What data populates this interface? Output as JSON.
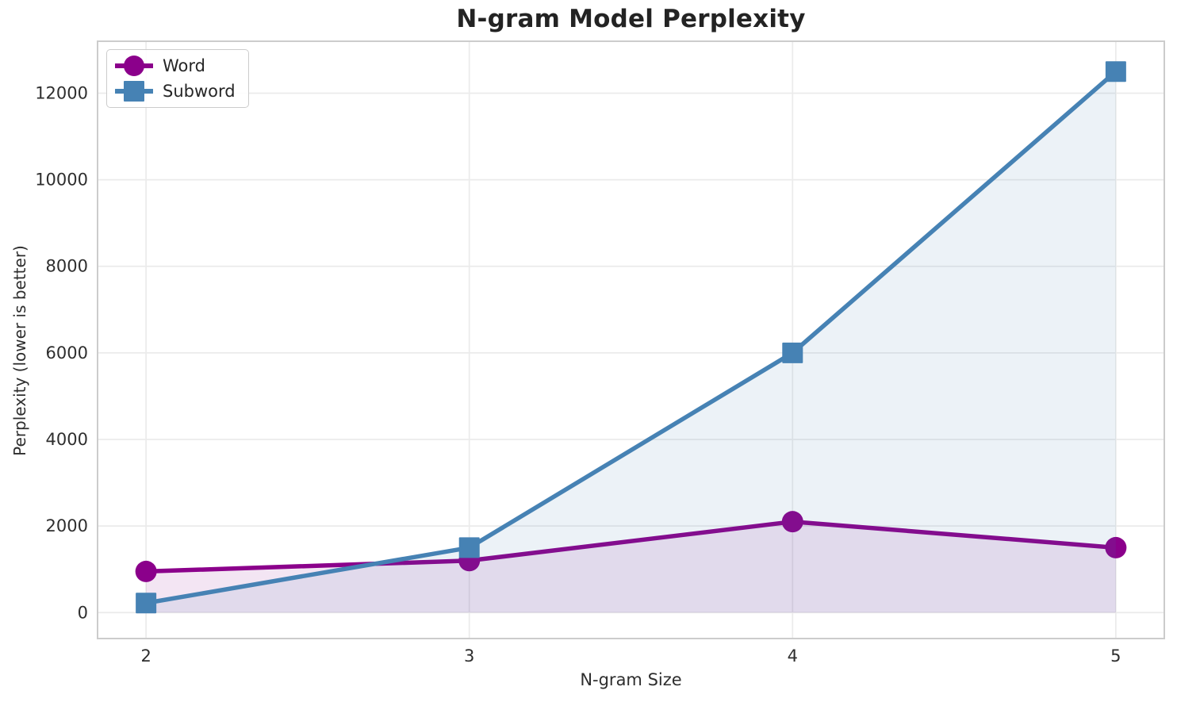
{
  "title": "N-gram Model Perplexity",
  "axes": {
    "xlabel": "N-gram Size",
    "ylabel": "Perplexity (lower is better)"
  },
  "legend": {
    "position": "upper left",
    "items": [
      {
        "label": "Word",
        "marker": "circle-marker-icon",
        "color": "#8B008B"
      },
      {
        "label": "Subword",
        "marker": "square-marker-icon",
        "color": "#4682B4"
      }
    ]
  },
  "colors": {
    "word_series": "#8B008B",
    "subword_series": "#4682B4",
    "gridline": "#EBEBEB",
    "spine": "#CCCCCC",
    "tick_text": "#2e2e2e",
    "background": "#ffffff"
  },
  "chart_data": {
    "type": "line",
    "title": "N-gram Model Perplexity",
    "xlabel": "N-gram Size",
    "ylabel": "Perplexity (lower is better)",
    "x": [
      2,
      3,
      4,
      5
    ],
    "series": [
      {
        "name": "Word",
        "color": "#8B008B",
        "marker": "circle",
        "values": [
          950,
          1200,
          2100,
          1500
        ]
      },
      {
        "name": "Subword",
        "color": "#4682B4",
        "marker": "square",
        "values": [
          220,
          1500,
          6000,
          12500
        ]
      }
    ],
    "xticks": [
      2,
      3,
      4,
      5
    ],
    "yticks": [
      0,
      2000,
      4000,
      6000,
      8000,
      10000,
      12000
    ],
    "xlim": [
      1.85,
      5.15
    ],
    "ylim": [
      -600,
      13200
    ],
    "grid": true,
    "legend_position": "upper left",
    "fill_to_zero": true,
    "fill_alpha": 0.1
  }
}
